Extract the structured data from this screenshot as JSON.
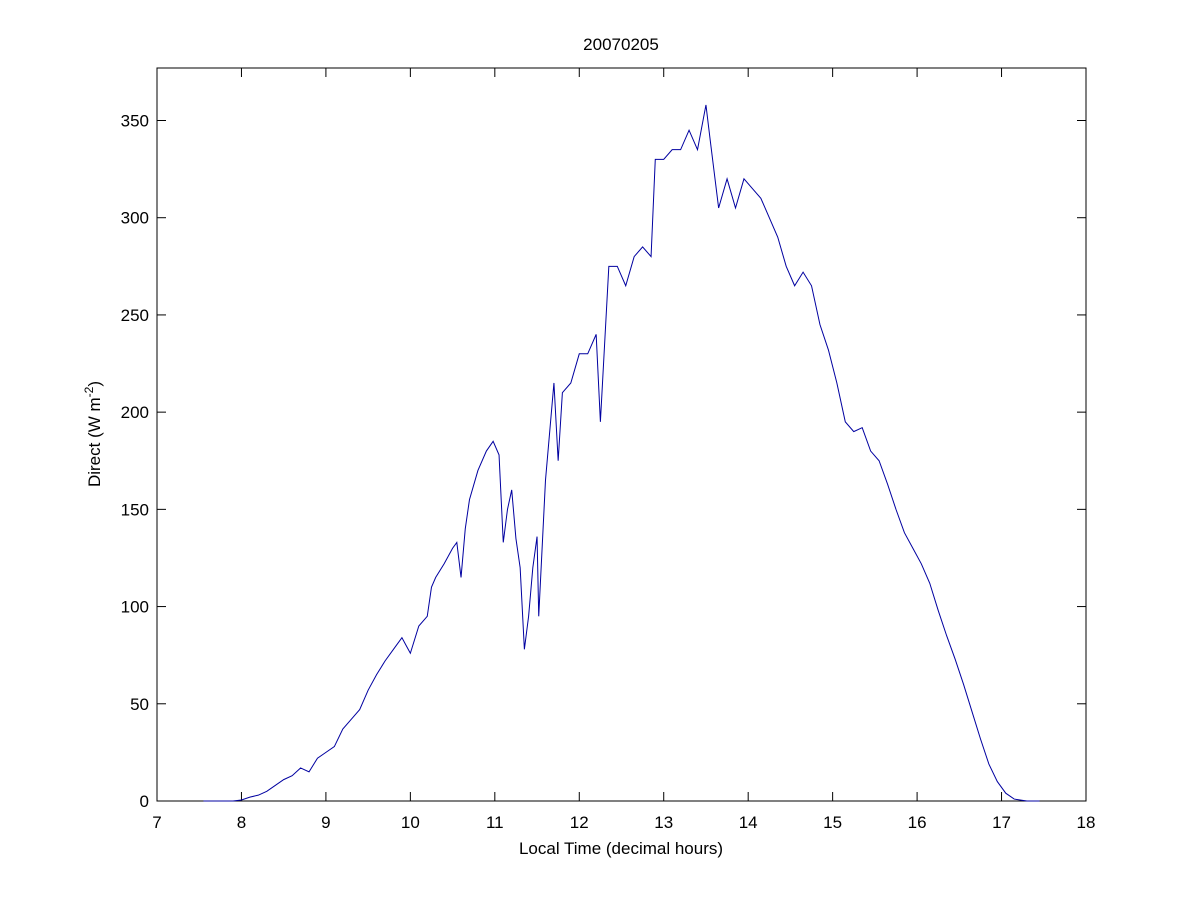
{
  "chart_data": {
    "type": "line",
    "title": "20070205",
    "xlabel": "Local Time (decimal hours)",
    "ylabel": [
      "Direct (W m",
      "-2",
      ")"
    ],
    "xlim": [
      7,
      18
    ],
    "xticks": [
      7,
      8,
      9,
      10,
      11,
      12,
      13,
      14,
      15,
      16,
      17,
      18
    ],
    "ylim": [
      0,
      377
    ],
    "yticks": [
      0,
      50,
      100,
      150,
      200,
      250,
      300,
      350
    ],
    "grid": false,
    "series": [
      {
        "color": "#0000a0",
        "x": [
          7.55,
          7.7,
          7.9,
          8.0,
          8.1,
          8.2,
          8.3,
          8.4,
          8.5,
          8.6,
          8.7,
          8.8,
          8.9,
          9.0,
          9.1,
          9.2,
          9.3,
          9.4,
          9.5,
          9.6,
          9.7,
          9.8,
          9.9,
          9.95,
          10.0,
          10.1,
          10.2,
          10.25,
          10.3,
          10.4,
          10.5,
          10.55,
          10.6,
          10.65,
          10.7,
          10.8,
          10.9,
          10.98,
          11.05,
          11.1,
          11.15,
          11.2,
          11.25,
          11.3,
          11.35,
          11.4,
          11.45,
          11.5,
          11.52,
          11.6,
          11.7,
          11.75,
          11.8,
          11.9,
          12.0,
          12.1,
          12.2,
          12.25,
          12.35,
          12.45,
          12.55,
          12.65,
          12.75,
          12.85,
          12.9,
          13.0,
          13.1,
          13.2,
          13.3,
          13.4,
          13.5,
          13.55,
          13.65,
          13.75,
          13.85,
          13.95,
          14.05,
          14.15,
          14.25,
          14.35,
          14.45,
          14.55,
          14.65,
          14.75,
          14.85,
          14.95,
          15.05,
          15.15,
          15.25,
          15.35,
          15.45,
          15.55,
          15.65,
          15.75,
          15.85,
          15.95,
          16.05,
          16.15,
          16.25,
          16.35,
          16.45,
          16.55,
          16.65,
          16.75,
          16.85,
          16.95,
          17.05,
          17.15,
          17.3,
          17.45
        ],
        "values": [
          0,
          0,
          0,
          0.5,
          2,
          3,
          5,
          8,
          11,
          13,
          17,
          15,
          22,
          25,
          28,
          37,
          42,
          47,
          57,
          65,
          72,
          78,
          84,
          80,
          76,
          90,
          95,
          110,
          115,
          122,
          130,
          133,
          115,
          140,
          155,
          170,
          180,
          185,
          178,
          133,
          150,
          160,
          135,
          120,
          78,
          95,
          120,
          136,
          95,
          165,
          215,
          175,
          210,
          215,
          230,
          230,
          240,
          195,
          275,
          275,
          265,
          280,
          285,
          280,
          330,
          330,
          335,
          335,
          345,
          335,
          358,
          340,
          305,
          320,
          305,
          320,
          315,
          310,
          300,
          290,
          275,
          265,
          272,
          265,
          245,
          232,
          215,
          195,
          190,
          192,
          180,
          175,
          163,
          150,
          138,
          130,
          122,
          112,
          98,
          85,
          73,
          60,
          46,
          32,
          19,
          10,
          4,
          1,
          0,
          0
        ]
      }
    ]
  }
}
